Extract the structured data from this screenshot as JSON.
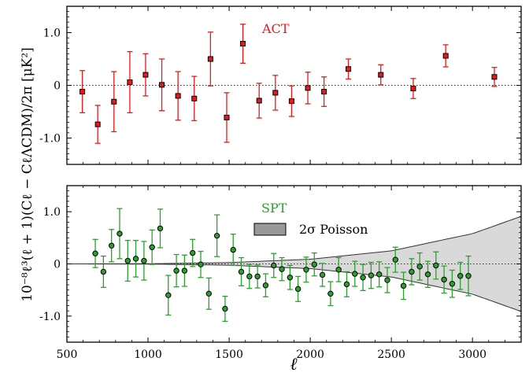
{
  "chart_data": {
    "type": "scatter",
    "shared": {
      "xlabel": "ℓ",
      "ylabel": "10⁻⁸ℓ³(ℓ + 1)(Cℓ − CℓΛCDM)/2π [μK²]",
      "xlim": [
        500,
        3300
      ],
      "xticks": [
        500,
        1000,
        1500,
        2000,
        2500,
        3000
      ],
      "xtick_labels": [
        "500",
        "1000",
        "1500",
        "2000",
        "2500",
        "3000"
      ],
      "ylim": [
        -1.5,
        1.5
      ],
      "yticks": [
        1.0,
        0,
        -1.0
      ],
      "ytick_labels": [
        "1.0",
        "0",
        "-1.0"
      ]
    },
    "panels": [
      {
        "name": "ACT",
        "label": "ACT",
        "color": "#e41a1c",
        "marker": "square",
        "zero_line": "dotted",
        "points": [
          {
            "x": 595,
            "y": -0.12,
            "err": 0.4
          },
          {
            "x": 690,
            "y": -0.74,
            "err": 0.36
          },
          {
            "x": 790,
            "y": -0.31,
            "err": 0.57
          },
          {
            "x": 888,
            "y": 0.06,
            "err": 0.58
          },
          {
            "x": 985,
            "y": 0.2,
            "err": 0.4
          },
          {
            "x": 1085,
            "y": 0.01,
            "err": 0.49
          },
          {
            "x": 1185,
            "y": -0.2,
            "err": 0.46
          },
          {
            "x": 1285,
            "y": -0.25,
            "err": 0.42
          },
          {
            "x": 1385,
            "y": 0.5,
            "err": 0.51
          },
          {
            "x": 1485,
            "y": -0.61,
            "err": 0.47
          },
          {
            "x": 1585,
            "y": 0.79,
            "err": 0.37
          },
          {
            "x": 1685,
            "y": -0.29,
            "err": 0.33
          },
          {
            "x": 1785,
            "y": -0.14,
            "err": 0.33
          },
          {
            "x": 1885,
            "y": -0.3,
            "err": 0.29
          },
          {
            "x": 1985,
            "y": -0.05,
            "err": 0.3
          },
          {
            "x": 2085,
            "y": -0.12,
            "err": 0.28
          },
          {
            "x": 2235,
            "y": 0.31,
            "err": 0.19
          },
          {
            "x": 2435,
            "y": 0.2,
            "err": 0.19
          },
          {
            "x": 2635,
            "y": -0.06,
            "err": 0.19
          },
          {
            "x": 2835,
            "y": 0.56,
            "err": 0.21
          },
          {
            "x": 3135,
            "y": 0.16,
            "err": 0.18
          }
        ]
      },
      {
        "name": "SPT",
        "label": "SPT",
        "color": "#2ca02c",
        "marker": "circle",
        "zero_line": "dotted",
        "band": {
          "label": "2σ Poisson",
          "fill": "#d9d9d9",
          "x": [
            500,
            1000,
            1500,
            2000,
            2500,
            3000,
            3300
          ],
          "upper": [
            0.0,
            0.003,
            0.025,
            0.09,
            0.25,
            0.58,
            0.91
          ]
        },
        "points": [
          {
            "x": 675,
            "y": 0.2,
            "err": 0.27
          },
          {
            "x": 725,
            "y": -0.15,
            "err": 0.3
          },
          {
            "x": 775,
            "y": 0.35,
            "err": 0.31
          },
          {
            "x": 825,
            "y": 0.58,
            "err": 0.48
          },
          {
            "x": 875,
            "y": 0.06,
            "err": 0.39
          },
          {
            "x": 925,
            "y": 0.1,
            "err": 0.35
          },
          {
            "x": 975,
            "y": 0.06,
            "err": 0.37
          },
          {
            "x": 1025,
            "y": 0.32,
            "err": 0.33
          },
          {
            "x": 1075,
            "y": 0.68,
            "err": 0.37
          },
          {
            "x": 1125,
            "y": -0.6,
            "err": 0.38
          },
          {
            "x": 1175,
            "y": -0.13,
            "err": 0.31
          },
          {
            "x": 1225,
            "y": -0.13,
            "err": 0.3
          },
          {
            "x": 1275,
            "y": 0.21,
            "err": 0.26
          },
          {
            "x": 1325,
            "y": -0.01,
            "err": 0.25
          },
          {
            "x": 1375,
            "y": -0.57,
            "err": 0.3
          },
          {
            "x": 1425,
            "y": 0.54,
            "err": 0.4
          },
          {
            "x": 1475,
            "y": -0.86,
            "err": 0.24
          },
          {
            "x": 1525,
            "y": 0.27,
            "err": 0.3
          },
          {
            "x": 1575,
            "y": -0.15,
            "err": 0.27
          },
          {
            "x": 1625,
            "y": -0.24,
            "err": 0.23
          },
          {
            "x": 1675,
            "y": -0.24,
            "err": 0.22
          },
          {
            "x": 1725,
            "y": -0.41,
            "err": 0.22
          },
          {
            "x": 1775,
            "y": -0.03,
            "err": 0.23
          },
          {
            "x": 1825,
            "y": -0.1,
            "err": 0.22
          },
          {
            "x": 1875,
            "y": -0.26,
            "err": 0.23
          },
          {
            "x": 1925,
            "y": -0.48,
            "err": 0.24
          },
          {
            "x": 1975,
            "y": -0.11,
            "err": 0.24
          },
          {
            "x": 2025,
            "y": -0.01,
            "err": 0.22
          },
          {
            "x": 2075,
            "y": -0.21,
            "err": 0.22
          },
          {
            "x": 2125,
            "y": -0.57,
            "err": 0.23
          },
          {
            "x": 2175,
            "y": -0.11,
            "err": 0.23
          },
          {
            "x": 2225,
            "y": -0.39,
            "err": 0.24
          },
          {
            "x": 2275,
            "y": -0.19,
            "err": 0.24
          },
          {
            "x": 2325,
            "y": -0.26,
            "err": 0.25
          },
          {
            "x": 2375,
            "y": -0.22,
            "err": 0.25
          },
          {
            "x": 2425,
            "y": -0.2,
            "err": 0.24
          },
          {
            "x": 2475,
            "y": -0.31,
            "err": 0.24
          },
          {
            "x": 2525,
            "y": 0.08,
            "err": 0.24
          },
          {
            "x": 2575,
            "y": -0.42,
            "err": 0.26
          },
          {
            "x": 2625,
            "y": -0.15,
            "err": 0.25
          },
          {
            "x": 2675,
            "y": -0.05,
            "err": 0.26
          },
          {
            "x": 2725,
            "y": -0.2,
            "err": 0.25
          },
          {
            "x": 2775,
            "y": -0.03,
            "err": 0.26
          },
          {
            "x": 2825,
            "y": -0.3,
            "err": 0.26
          },
          {
            "x": 2875,
            "y": -0.38,
            "err": 0.26
          },
          {
            "x": 2925,
            "y": -0.23,
            "err": 0.26
          },
          {
            "x": 2975,
            "y": -0.23,
            "err": 0.38
          }
        ]
      }
    ]
  }
}
